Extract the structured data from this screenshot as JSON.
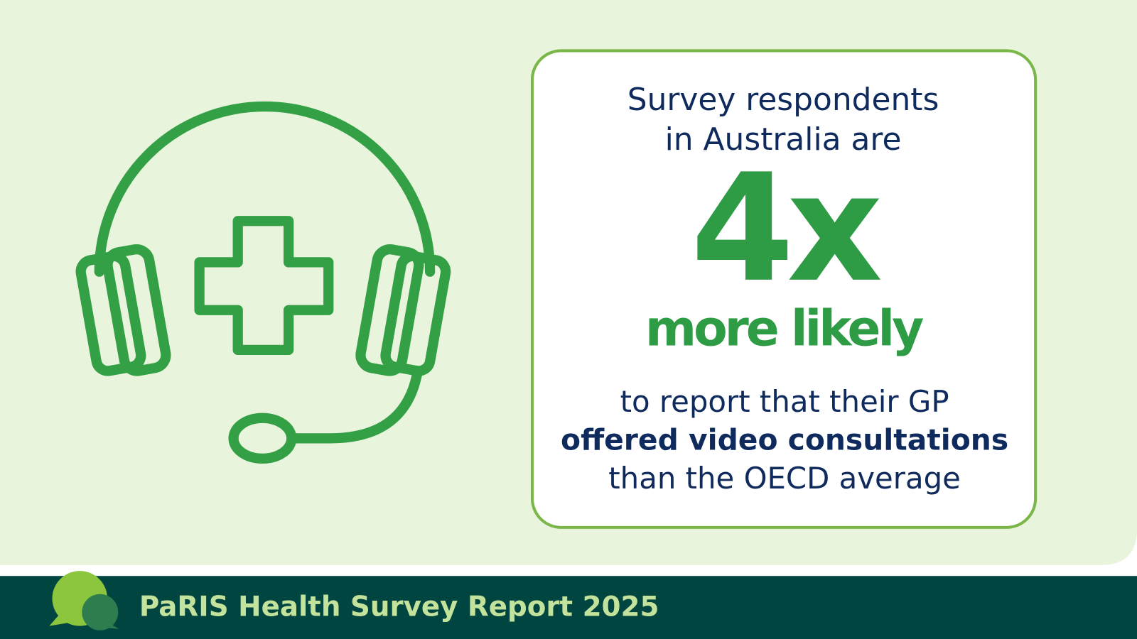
{
  "headline": {
    "lines": [
      "Survey respondents",
      "in Australia are"
    ]
  },
  "stat": {
    "value": "4x",
    "caption": "more likely"
  },
  "body": {
    "lines": [
      "to report that their GP",
      "offered video consultations",
      "than the OECD average"
    ]
  },
  "footer": {
    "title": "PaRIS Health Survey Report 2025"
  }
}
